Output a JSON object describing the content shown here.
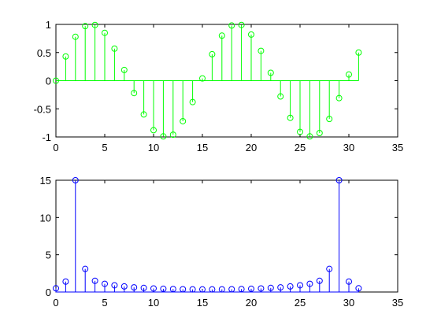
{
  "chart_data": [
    {
      "type": "stem",
      "title": "",
      "xlabel": "",
      "ylabel": "",
      "xlim": [
        0,
        35
      ],
      "ylim": [
        -1,
        1
      ],
      "xticks": [
        0,
        5,
        10,
        15,
        20,
        25,
        30,
        35
      ],
      "yticks": [
        -1,
        -0.5,
        0,
        0.5,
        1
      ],
      "xtick_labels": [
        "0",
        "5",
        "10",
        "15",
        "20",
        "25",
        "30",
        "35"
      ],
      "ytick_labels": [
        "-1",
        "-0.5",
        "0",
        "0.5",
        "1"
      ],
      "grid": false,
      "baseline": 0,
      "color": "#00ff00",
      "series": [
        {
          "x": [
            0,
            1,
            2,
            3,
            4,
            5,
            6,
            7,
            8,
            9,
            10,
            11,
            12,
            13,
            14,
            15,
            16,
            17,
            18,
            19,
            20,
            21,
            22,
            23,
            24,
            25,
            26,
            27,
            28,
            29,
            30,
            31
          ],
          "y": [
            0,
            0.43,
            0.78,
            0.97,
            0.99,
            0.85,
            0.57,
            0.19,
            -0.22,
            -0.6,
            -0.88,
            -0.99,
            -0.96,
            -0.72,
            -0.38,
            0.04,
            0.47,
            0.8,
            0.98,
            0.99,
            0.82,
            0.53,
            0.14,
            -0.28,
            -0.66,
            -0.91,
            -0.99,
            -0.93,
            -0.68,
            -0.31,
            0.11,
            0.5
          ]
        }
      ]
    },
    {
      "type": "stem",
      "title": "",
      "xlabel": "",
      "ylabel": "",
      "xlim": [
        0,
        35
      ],
      "ylim": [
        0,
        15
      ],
      "xticks": [
        0,
        5,
        10,
        15,
        20,
        25,
        30,
        35
      ],
      "yticks": [
        0,
        5,
        10,
        15
      ],
      "xtick_labels": [
        "0",
        "5",
        "10",
        "15",
        "20",
        "25",
        "30",
        "35"
      ],
      "ytick_labels": [
        "0",
        "5",
        "10",
        "15"
      ],
      "grid": false,
      "baseline": 0,
      "color": "#0000ff",
      "series": [
        {
          "x": [
            0,
            1,
            2,
            3,
            4,
            5,
            6,
            7,
            8,
            9,
            10,
            11,
            12,
            13,
            14,
            15,
            16,
            17,
            18,
            19,
            20,
            21,
            22,
            23,
            24,
            25,
            26,
            27,
            28,
            29,
            30,
            31
          ],
          "y": [
            0.5,
            1.4,
            15,
            3.1,
            1.5,
            1.1,
            0.9,
            0.75,
            0.62,
            0.55,
            0.48,
            0.43,
            0.4,
            0.37,
            0.36,
            0.35,
            0.35,
            0.36,
            0.37,
            0.4,
            0.43,
            0.48,
            0.55,
            0.62,
            0.75,
            0.9,
            1.1,
            1.5,
            3.1,
            15,
            1.4,
            0.5
          ]
        }
      ]
    }
  ]
}
